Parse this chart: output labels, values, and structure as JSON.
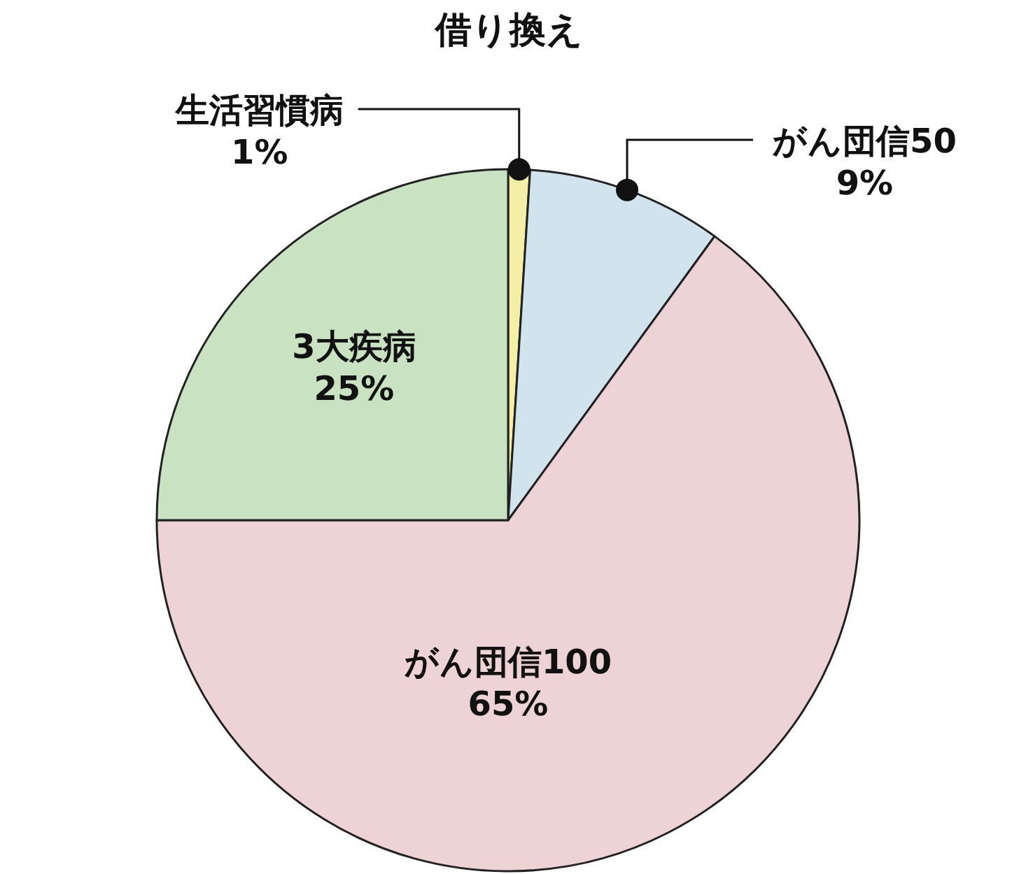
{
  "chart_data": {
    "type": "pie",
    "title": "借り換え",
    "categories": [
      "生活習慣病",
      "がん団信50",
      "がん団信100",
      "3大疾病"
    ],
    "values": [
      1,
      9,
      65,
      25
    ],
    "colors": [
      "#f3efa6",
      "#d1e3ec",
      "#eed3d6",
      "#c9e2c2"
    ],
    "value_labels": [
      "1%",
      "9%",
      "65%",
      "25%"
    ]
  }
}
